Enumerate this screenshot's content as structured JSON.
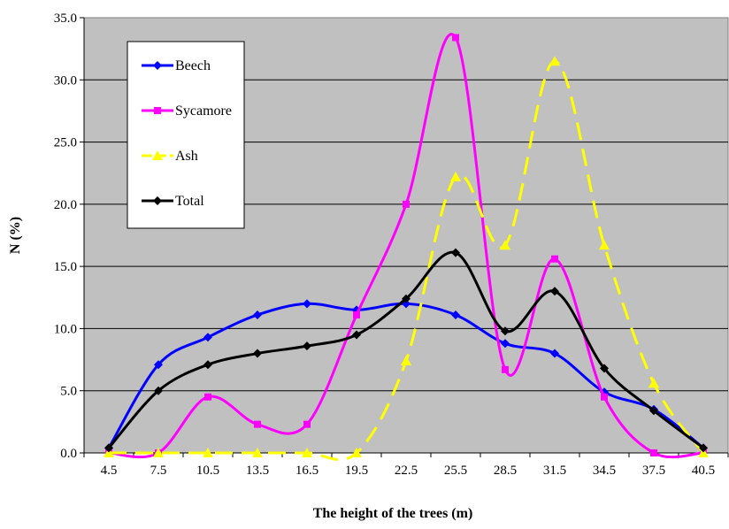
{
  "chart_data": {
    "type": "line",
    "title": "",
    "xlabel": "The height of the trees (m)",
    "ylabel": "N (%)",
    "categories": [
      "4.5",
      "7.5",
      "10.5",
      "13.5",
      "16.5",
      "19.5",
      "22.5",
      "25.5",
      "28.5",
      "31.5",
      "34.5",
      "37.5",
      "40.5"
    ],
    "y_tick_labels": [
      "0.0",
      "5.0",
      "10.0",
      "15.0",
      "20.0",
      "25.0",
      "30.0",
      "35.0"
    ],
    "ylim": [
      0,
      35
    ],
    "y_step": 5,
    "grid": "horizontal",
    "plot_background": "#c0c0c0",
    "legend_position": "top-left",
    "series": [
      {
        "name": "Beech",
        "color": "#0000ff",
        "marker": "diamond",
        "dashed": false,
        "values": [
          0.4,
          7.1,
          9.3,
          11.1,
          12.0,
          11.5,
          12.0,
          11.1,
          8.8,
          8.0,
          4.9,
          3.5,
          0.4
        ]
      },
      {
        "name": "Sycamore",
        "color": "#ff00ff",
        "marker": "square",
        "dashed": false,
        "values": [
          0.0,
          0.0,
          4.5,
          2.3,
          2.3,
          11.1,
          20.0,
          33.4,
          6.7,
          15.6,
          4.5,
          0.0,
          0.0
        ]
      },
      {
        "name": "Ash",
        "color": "#ffff00",
        "marker": "triangle",
        "dashed": true,
        "values": [
          0.0,
          0.0,
          0.0,
          0.0,
          0.0,
          0.0,
          7.4,
          22.2,
          16.7,
          31.5,
          16.7,
          5.6,
          0.0
        ]
      },
      {
        "name": "Total",
        "color": "#000000",
        "marker": "diamond",
        "dashed": false,
        "values": [
          0.4,
          5.0,
          7.1,
          8.0,
          8.6,
          9.5,
          12.4,
          16.1,
          9.8,
          13.0,
          6.8,
          3.4,
          0.4
        ]
      }
    ]
  }
}
